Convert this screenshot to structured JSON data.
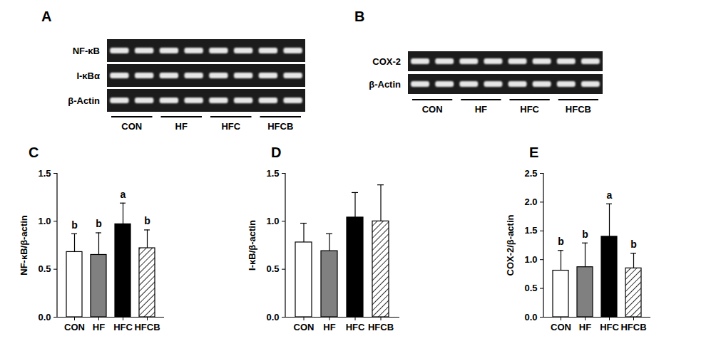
{
  "chart_data": [
    {
      "panel": "C",
      "type": "bar",
      "categories": [
        "CON",
        "HF",
        "HFC",
        "HFCB"
      ],
      "values": [
        0.68,
        0.65,
        0.97,
        0.72
      ],
      "error": [
        0.19,
        0.23,
        0.22,
        0.19
      ],
      "annotations": [
        "b",
        "b",
        "a",
        "b"
      ],
      "colors": [
        "#ffffff",
        "#808080",
        "#000000",
        "#ffffff"
      ],
      "ylabel": "NF-κB/β-actin",
      "ylim": [
        0,
        1.5
      ],
      "yticks": [
        {
          "value": 0,
          "label": "0.0"
        },
        {
          "value": 0.5,
          "label": "0.5"
        },
        {
          "value": 1,
          "label": "1.0"
        },
        {
          "value": 1.5,
          "label": "1.5"
        }
      ]
    },
    {
      "panel": "D",
      "type": "bar",
      "categories": [
        "CON",
        "HF",
        "HFC",
        "HFCB"
      ],
      "values": [
        0.78,
        0.69,
        1.04,
        1.0
      ],
      "error": [
        0.2,
        0.18,
        0.26,
        0.38
      ],
      "colors": [
        "#ffffff",
        "#808080",
        "#000000",
        "#ffffff"
      ],
      "ylabel": "I-κB/β-actin",
      "ylim": [
        0,
        1.5
      ],
      "yticks": [
        {
          "value": 0,
          "label": "0.0"
        },
        {
          "value": 0.5,
          "label": "0.5"
        },
        {
          "value": 1,
          "label": "1.0"
        },
        {
          "value": 1.5,
          "label": "1.5"
        }
      ]
    },
    {
      "panel": "E",
      "type": "bar",
      "categories": [
        "CON",
        "HF",
        "HFC",
        "HFCB"
      ],
      "values": [
        0.81,
        0.87,
        1.4,
        0.85
      ],
      "error": [
        0.35,
        0.42,
        0.57,
        0.26
      ],
      "annotations": [
        "b",
        "b",
        "a",
        "b"
      ],
      "colors": [
        "#ffffff",
        "#808080",
        "#000000",
        "#ffffff"
      ],
      "ylabel": "COX-2/β-actin",
      "ylim": [
        0,
        2.5
      ],
      "yticks": [
        {
          "value": 0,
          "label": "0.0"
        },
        {
          "value": 0.5,
          "label": "0.5"
        },
        {
          "value": 1,
          "label": "1.0"
        },
        {
          "value": 1.5,
          "label": "1.5"
        },
        {
          "value": 2,
          "label": "2.0"
        },
        {
          "value": 2.5,
          "label": "2.5"
        }
      ]
    }
  ],
  "blots": [
    {
      "panel": "A",
      "rows": [
        "NF-κB",
        "I-κBα",
        "β-Actin"
      ],
      "groups": [
        "CON",
        "HF",
        "HFC",
        "HFCB"
      ]
    },
    {
      "panel": "B",
      "rows": [
        "COX-2",
        "β-Actin"
      ],
      "groups": [
        "CON",
        "HF",
        "HFC",
        "HFCB"
      ]
    }
  ]
}
